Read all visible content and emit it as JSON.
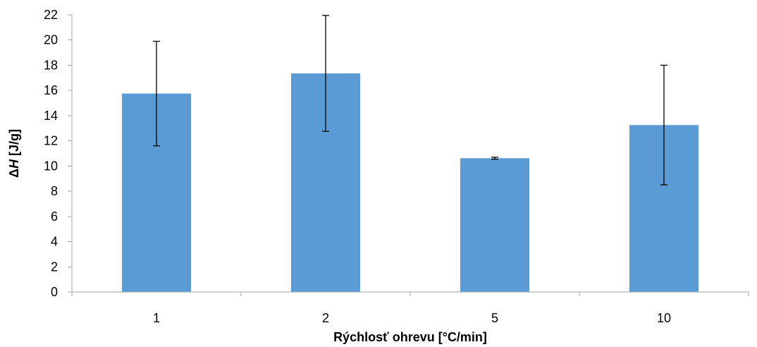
{
  "chart_data": {
    "type": "bar",
    "categories": [
      "1",
      "2",
      "5",
      "10"
    ],
    "values": [
      15.75,
      17.35,
      10.62,
      13.25
    ],
    "errors": [
      4.15,
      4.6,
      0.08,
      4.75
    ],
    "xlabel": "Rýchlosť ohrevu [°C/min]",
    "ylabel_prefix": "Δ",
    "ylabel_var": "H",
    "ylabel_unit": " [J/g]",
    "ylim": [
      0,
      22
    ],
    "ytick_step": 2,
    "bar_color": "#5b9bd5",
    "grid": false,
    "legend": "none"
  }
}
